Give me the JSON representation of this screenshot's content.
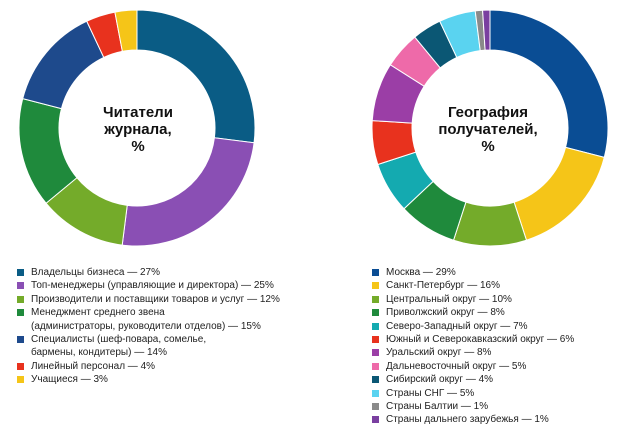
{
  "chart_data": [
    {
      "type": "donut",
      "title": "Читатели журнала, %",
      "title_lines": [
        "Читатели",
        "журнала,",
        "%"
      ],
      "unit": "%",
      "legend_position": "bottom",
      "slices": [
        {
          "label": "Владельцы бизнеса — 27%",
          "lines": [
            "Владельцы бизнеса — 27%"
          ],
          "value": 27,
          "color": "#0a5c85"
        },
        {
          "label": "Топ-менеджеры (управляющие и директора) — 25%",
          "lines": [
            "Топ-менеджеры (управляющие и директора) — 25%"
          ],
          "value": 25,
          "color": "#8a4fb4"
        },
        {
          "label": "Производители и поставщики товаров и услуг — 12%",
          "lines": [
            "Производители и поставщики товаров и услуг — 12%"
          ],
          "value": 12,
          "color": "#74ab2a"
        },
        {
          "label": "Менеджмент среднего звена (администраторы, руководители отделов) — 15%",
          "lines": [
            "Менеджмент среднего звена",
            "(администраторы, руководители отделов) — 15%"
          ],
          "value": 15,
          "color": "#1f8a3c"
        },
        {
          "label": "Специалисты (шеф-повара, сомелье, бармены, кондитеры) — 14%",
          "lines": [
            "Специалисты (шеф-повара, сомелье,",
            "бармены, кондитеры) — 14%"
          ],
          "value": 14,
          "color": "#1e4a8c"
        },
        {
          "label": "Линейный персонал — 4%",
          "lines": [
            "Линейный персонал — 4%"
          ],
          "value": 4,
          "color": "#e8321e"
        },
        {
          "label": "Учащиеся — 3%",
          "lines": [
            "Учащиеся — 3%"
          ],
          "value": 3,
          "color": "#f5c518"
        }
      ]
    },
    {
      "type": "donut",
      "title": "География получателей, %",
      "title_lines": [
        "География",
        "получателей,",
        "%"
      ],
      "unit": "%",
      "legend_position": "bottom",
      "slices": [
        {
          "label": "Москва — 29%",
          "lines": [
            "Москва — 29%"
          ],
          "value": 29,
          "color": "#0a4d94"
        },
        {
          "label": "Санкт-Петербург — 16%",
          "lines": [
            "Санкт-Петербург — 16%"
          ],
          "value": 16,
          "color": "#f5c518"
        },
        {
          "label": "Центральный округ — 10%",
          "lines": [
            "Центральный округ — 10%"
          ],
          "value": 10,
          "color": "#74ab2a"
        },
        {
          "label": "Приволжский округ — 8%",
          "lines": [
            "Приволжский округ — 8%"
          ],
          "value": 8,
          "color": "#1f8a3c"
        },
        {
          "label": "Северо-Западный округ — 7%",
          "lines": [
            "Северо-Западный  округ — 7%"
          ],
          "value": 7,
          "color": "#14aab0"
        },
        {
          "label": "Южный и Северокавказский округ — 6%",
          "lines": [
            "Южный и Северокавказский округ — 6%"
          ],
          "value": 6,
          "color": "#e8321e"
        },
        {
          "label": "Уральский округ — 8%",
          "lines": [
            "Уральский округ — 8%"
          ],
          "value": 8,
          "color": "#9b3ea6"
        },
        {
          "label": "Дальневосточный округ — 5%",
          "lines": [
            "Дальневосточный округ — 5%"
          ],
          "value": 5,
          "color": "#ee6aa9"
        },
        {
          "label": "Сибирский округ — 4%",
          "lines": [
            "Сибирский округ — 4%"
          ],
          "value": 4,
          "color": "#0b5774"
        },
        {
          "label": "Страны СНГ — 5%",
          "lines": [
            "Страны СНГ — 5%"
          ],
          "value": 5,
          "color": "#5ad3f0"
        },
        {
          "label": "Страны Балтии — 1%",
          "lines": [
            "Страны Балтии — 1%"
          ],
          "value": 1,
          "color": "#8a8a8a"
        },
        {
          "label": "Страны дальнего зарубежья — 1%",
          "lines": [
            "Страны дальнего зарубежья — 1%"
          ],
          "value": 1,
          "color": "#7a3fa0"
        }
      ]
    }
  ]
}
